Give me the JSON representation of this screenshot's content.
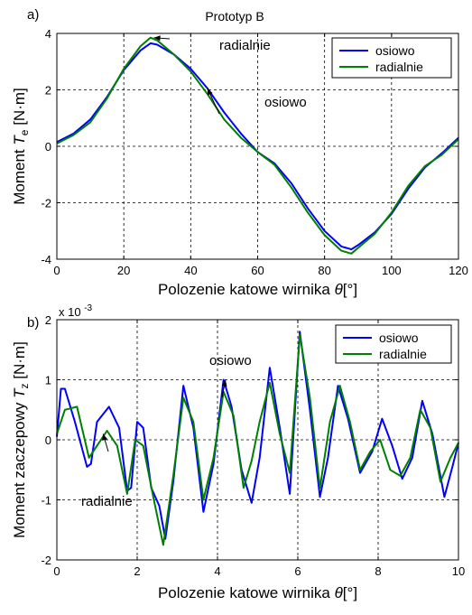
{
  "chart_data": [
    {
      "type": "line",
      "panel_label": "a)",
      "title": "Prototyp B",
      "xlabel": "Polozenie katowe wirnika",
      "xlabel_symbol": "θ",
      "xlabel_unit": "[°]",
      "ylabel": "Moment",
      "ylabel_symbol": "T",
      "ylabel_sub": "e",
      "ylabel_unit": "[N·m]",
      "xlim": [
        0,
        120
      ],
      "ylim": [
        -4,
        4
      ],
      "xticks": [
        "0",
        "20",
        "40",
        "60",
        "80",
        "100",
        "120"
      ],
      "yticks": [
        "-4",
        "-2",
        "0",
        "2",
        "4"
      ],
      "grid": true,
      "legend_position": "top-right",
      "series": [
        {
          "name": "osiowo",
          "color": "#0000ff",
          "x": [
            0,
            5,
            10,
            15,
            20,
            25,
            28,
            30,
            35,
            40,
            45,
            50,
            55,
            60,
            65,
            70,
            75,
            80,
            85,
            88,
            90,
            95,
            100,
            105,
            110,
            115,
            120
          ],
          "y": [
            0.15,
            0.45,
            0.95,
            1.75,
            2.7,
            3.4,
            3.65,
            3.6,
            3.25,
            2.75,
            2.05,
            1.2,
            0.45,
            -0.2,
            -0.6,
            -1.3,
            -2.2,
            -3.0,
            -3.55,
            -3.65,
            -3.5,
            -3.05,
            -2.4,
            -1.5,
            -0.75,
            -0.25,
            0.3
          ]
        },
        {
          "name": "radialnie",
          "color": "#008000",
          "x": [
            0,
            5,
            10,
            15,
            20,
            25,
            28,
            30,
            35,
            40,
            45,
            50,
            55,
            60,
            65,
            70,
            75,
            80,
            85,
            88,
            90,
            95,
            100,
            105,
            110,
            115,
            120
          ],
          "y": [
            0.1,
            0.4,
            0.85,
            1.7,
            2.75,
            3.55,
            3.85,
            3.75,
            3.25,
            2.65,
            1.85,
            0.95,
            0.3,
            -0.2,
            -0.65,
            -1.45,
            -2.35,
            -3.15,
            -3.7,
            -3.8,
            -3.6,
            -3.1,
            -2.35,
            -1.4,
            -0.7,
            -0.3,
            0.25
          ]
        }
      ],
      "annotations": [
        {
          "text": "radialnie",
          "x": 29,
          "y": 3.85
        },
        {
          "text": "osiowo",
          "x": 45,
          "y": 2.05
        }
      ]
    },
    {
      "type": "line",
      "panel_label": "b)",
      "exponent_label": "x 10",
      "exponent_power": "-3",
      "xlabel": "Polozenie katowe wirnika",
      "xlabel_symbol": "θ",
      "xlabel_unit": "[°]",
      "ylabel": "Moment zaczepowy",
      "ylabel_symbol": "T",
      "ylabel_sub": "z",
      "ylabel_unit": "[N·m]",
      "xlim": [
        0,
        10
      ],
      "ylim": [
        -2,
        2
      ],
      "xticks": [
        "0",
        "2",
        "4",
        "6",
        "8",
        "10"
      ],
      "yticks": [
        "-2",
        "-1",
        "0",
        "1",
        "2"
      ],
      "grid": true,
      "legend_position": "top-right",
      "series": [
        {
          "name": "osiowo",
          "color": "#0000ff",
          "x": [
            0,
            0.1,
            0.2,
            0.45,
            0.75,
            0.85,
            1.0,
            1.3,
            1.55,
            1.75,
            1.85,
            2.0,
            2.15,
            2.35,
            2.55,
            2.7,
            2.9,
            3.15,
            3.4,
            3.65,
            3.9,
            4.15,
            4.35,
            4.6,
            4.85,
            5.05,
            5.3,
            5.55,
            5.8,
            6.05,
            6.3,
            6.55,
            6.75,
            7.0,
            7.25,
            7.55,
            7.85,
            8.1,
            8.35,
            8.6,
            8.85,
            9.1,
            9.35,
            9.65,
            9.85,
            10.0
          ],
          "y": [
            0.05,
            0.85,
            0.85,
            0.3,
            -0.45,
            -0.4,
            0.3,
            0.55,
            0.2,
            -0.85,
            -0.8,
            0.3,
            0.2,
            -0.8,
            -1.1,
            -1.65,
            -0.7,
            0.9,
            0.2,
            -1.2,
            -0.4,
            1.0,
            0.55,
            -0.5,
            -1.05,
            -0.3,
            1.2,
            0.2,
            -0.9,
            1.8,
            0.5,
            -0.95,
            -0.3,
            0.9,
            0.35,
            -0.55,
            -0.2,
            0.35,
            -0.1,
            -0.65,
            -0.3,
            0.65,
            0.1,
            -0.95,
            -0.45,
            -0.05
          ]
        },
        {
          "name": "radialnie",
          "color": "#008000",
          "x": [
            0,
            0.2,
            0.5,
            0.8,
            1.0,
            1.25,
            1.5,
            1.75,
            1.95,
            2.15,
            2.4,
            2.65,
            2.9,
            3.15,
            3.4,
            3.65,
            3.9,
            4.15,
            4.4,
            4.65,
            4.85,
            5.05,
            5.3,
            5.55,
            5.8,
            6.05,
            6.3,
            6.55,
            6.8,
            7.05,
            7.3,
            7.55,
            7.8,
            8.05,
            8.3,
            8.55,
            8.8,
            9.05,
            9.3,
            9.55,
            9.8,
            10.0
          ],
          "y": [
            0.1,
            0.5,
            0.55,
            -0.3,
            -0.1,
            0.15,
            -0.1,
            -0.9,
            0.0,
            -0.1,
            -0.95,
            -1.75,
            -0.6,
            0.7,
            0.3,
            -1.0,
            -0.3,
            0.8,
            0.4,
            -0.8,
            -0.35,
            0.3,
            0.95,
            0.1,
            -0.55,
            1.75,
            0.7,
            -0.8,
            0.3,
            0.9,
            0.3,
            -0.5,
            -0.2,
            0.0,
            -0.5,
            -0.6,
            -0.3,
            0.5,
            0.2,
            -0.7,
            -0.3,
            -0.05
          ]
        }
      ],
      "annotations": [
        {
          "text": "osiowo",
          "x": 4.2,
          "y": 1.0
        },
        {
          "text": "radialnie",
          "x": 1.15,
          "y": 0.1
        }
      ]
    }
  ]
}
